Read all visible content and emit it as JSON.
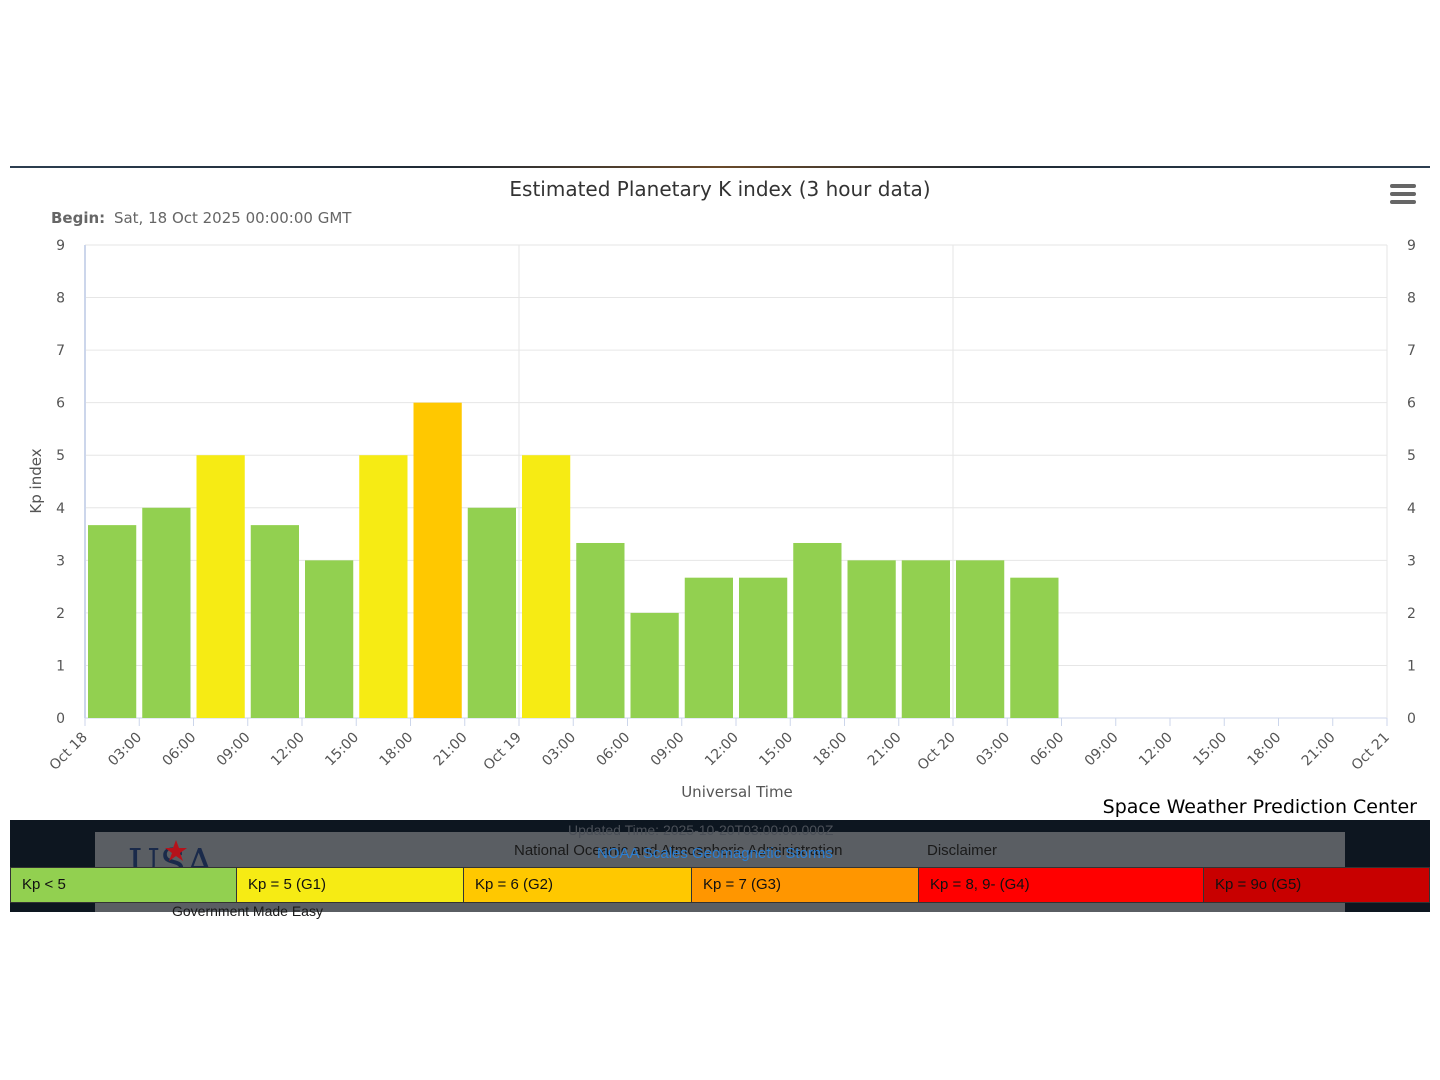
{
  "chart_data": {
    "type": "bar",
    "title": "Estimated Planetary K index (3 hour data)",
    "subtitle_label": "Begin:",
    "subtitle_value": "Sat, 18 Oct 2025 00:00:00 GMT",
    "xlabel": "Universal Time",
    "ylabel": "Kp index",
    "ylim": [
      0,
      9
    ],
    "y_ticks": [
      "0",
      "1",
      "2",
      "3",
      "4",
      "5",
      "6",
      "7",
      "8",
      "9"
    ],
    "x_ticks": [
      "Oct 18",
      "03:00",
      "06:00",
      "09:00",
      "12:00",
      "15:00",
      "18:00",
      "21:00",
      "Oct 19",
      "03:00",
      "06:00",
      "09:00",
      "12:00",
      "15:00",
      "18:00",
      "21:00",
      "Oct 20",
      "03:00",
      "06:00",
      "09:00",
      "12:00",
      "15:00",
      "18:00",
      "21:00",
      "Oct 21"
    ],
    "values": [
      3.67,
      4,
      5,
      3.67,
      3,
      5,
      6,
      4,
      5,
      3.33,
      2,
      2.67,
      2.67,
      3.33,
      3,
      3,
      3,
      2.67
    ],
    "slot_count": 24,
    "grid": true,
    "colors": {
      "kp_lt5": "#92d050",
      "kp5": "#f6eb14",
      "kp6": "#ffc800",
      "kp7": "#ff9600",
      "kp8": "#ff0000",
      "kp9": "#c80000"
    },
    "credit": "Space Weather Prediction Center"
  },
  "footer": {
    "updated": "Updated Time: 2025-10-20T03:00:00.000Z",
    "noaa": "National Oceanic and Atmospheric Administration",
    "disclaimer": "Disclaimer",
    "scales_link": "NOAA Scales Geomagnetic Storms",
    "gov_text": "Government Made Easy"
  },
  "legend": [
    {
      "label": "Kp < 5",
      "color": "#92d050"
    },
    {
      "label": "Kp = 5 (G1)",
      "color": "#f6eb14"
    },
    {
      "label": "Kp = 6 (G2)",
      "color": "#ffc800"
    },
    {
      "label": "Kp = 7 (G3)",
      "color": "#ff9600"
    },
    {
      "label": "Kp = 8, 9- (G4)",
      "color": "#ff0000"
    },
    {
      "label": "Kp = 9o (G5)",
      "color": "#c80000"
    }
  ],
  "icons": {
    "menu": "hamburger-menu-icon"
  }
}
